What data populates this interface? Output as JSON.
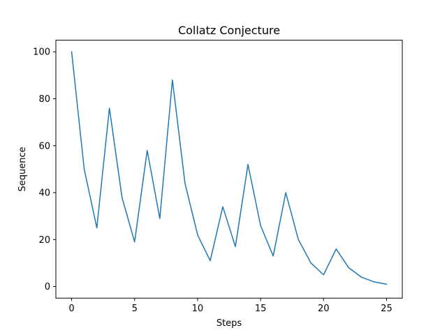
{
  "chart_data": {
    "type": "line",
    "title": "Collatz Conjecture",
    "xlabel": "Steps",
    "ylabel": "Sequence",
    "x": [
      0,
      1,
      2,
      3,
      4,
      5,
      6,
      7,
      8,
      9,
      10,
      11,
      12,
      13,
      14,
      15,
      16,
      17,
      18,
      19,
      20,
      21,
      22,
      23,
      24,
      25
    ],
    "series": [
      {
        "values": [
          100,
          50,
          25,
          76,
          38,
          19,
          58,
          29,
          88,
          44,
          22,
          11,
          34,
          17,
          52,
          26,
          13,
          40,
          20,
          10,
          5,
          16,
          8,
          4,
          2,
          1
        ],
        "color": "#1f77b4"
      }
    ],
    "xlim": [
      -1.25,
      26.25
    ],
    "ylim": [
      -4.95,
      104.95
    ],
    "xticks": [
      0,
      5,
      10,
      15,
      20,
      25
    ],
    "yticks": [
      0,
      20,
      40,
      60,
      80,
      100
    ],
    "grid": false
  }
}
